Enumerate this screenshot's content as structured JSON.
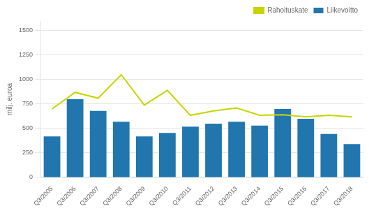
{
  "chart_data": {
    "type": "bar",
    "ylabel": "milj. euroa",
    "categories": [
      "Q3/2005",
      "Q3/2006",
      "Q3/2007",
      "Q3/2008",
      "Q3/2009",
      "Q3/2010",
      "Q3/2011",
      "Q3/2012",
      "Q3/2013",
      "Q3/2014",
      "Q3/2015",
      "Q3/2016",
      "Q3/2017",
      "Q3/2018"
    ],
    "series": [
      {
        "name": "Liikevoitto",
        "type": "bar",
        "color": "#2176ae",
        "values": [
          420,
          800,
          680,
          570,
          420,
          455,
          520,
          550,
          570,
          530,
          700,
          600,
          445,
          340
        ]
      },
      {
        "name": "Rahoituskate",
        "type": "line",
        "color": "#c8d400",
        "values": [
          700,
          870,
          810,
          1050,
          740,
          890,
          635,
          680,
          710,
          635,
          640,
          620,
          635,
          620
        ]
      }
    ],
    "ylim": [
      0,
      1600
    ],
    "yticks": [
      0,
      250,
      500,
      750,
      1000,
      1250,
      1500
    ],
    "grid": true,
    "legend": "upper right"
  }
}
